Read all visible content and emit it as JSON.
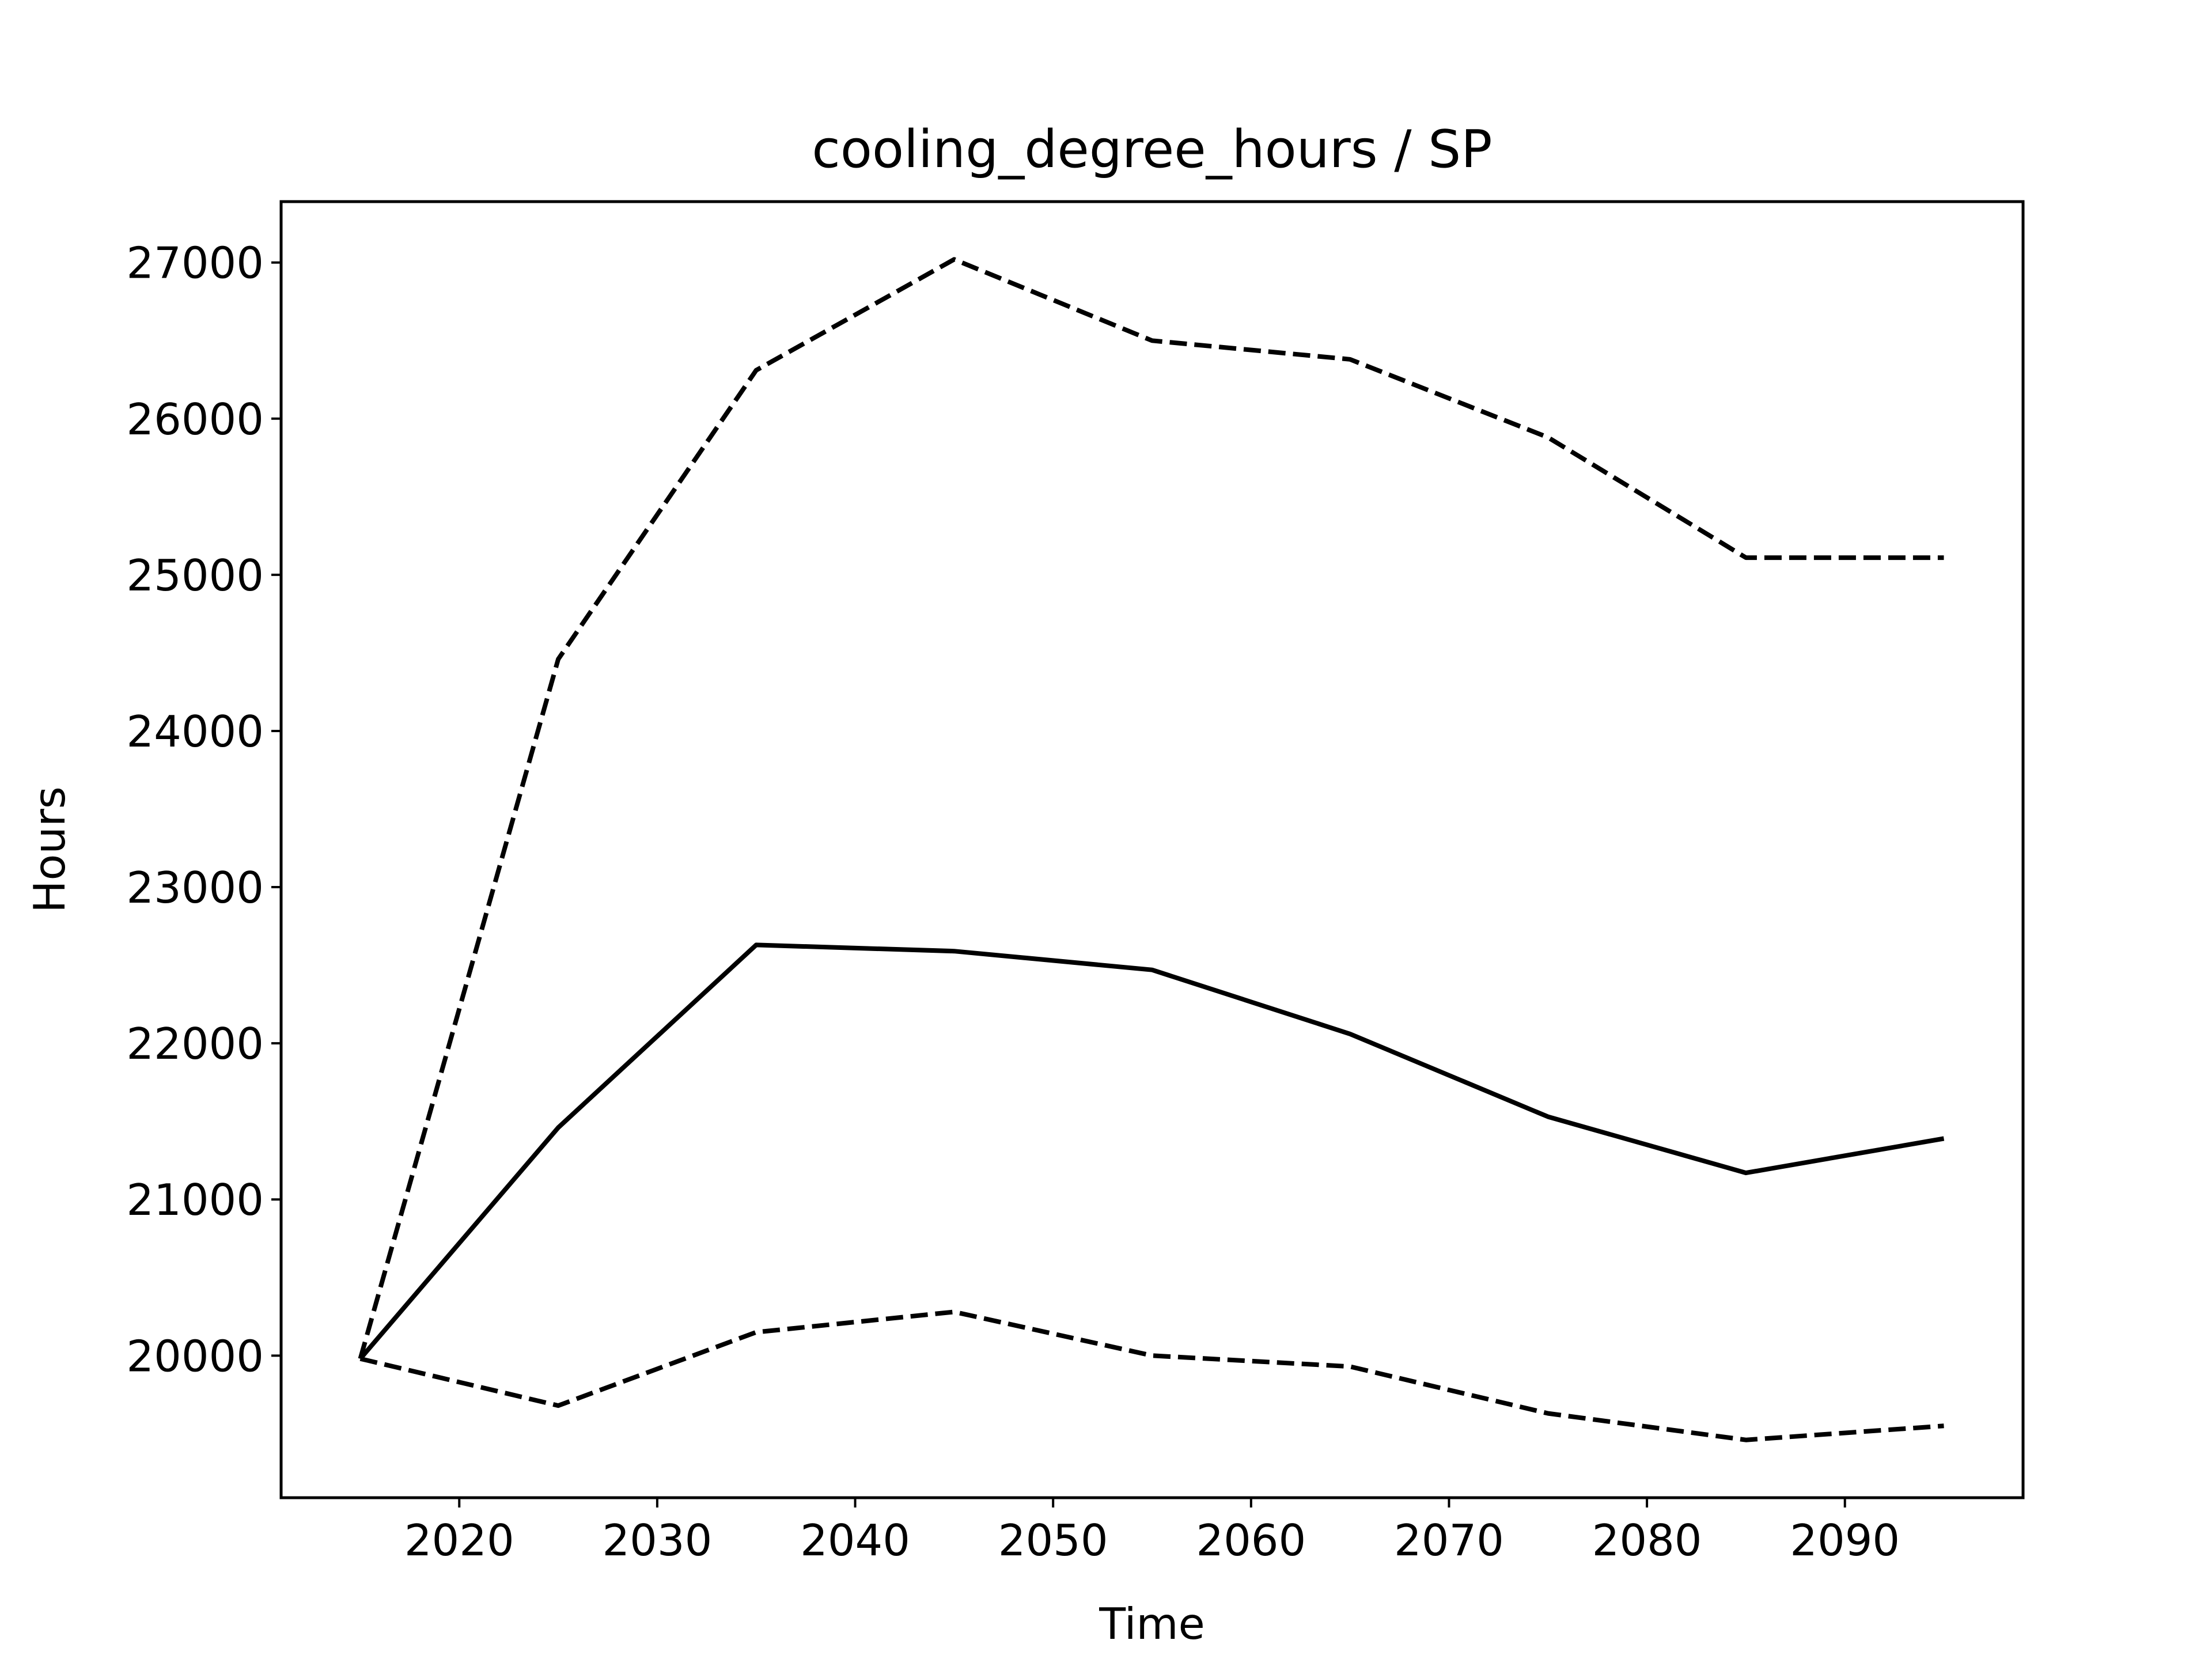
{
  "chart_data": {
    "type": "line",
    "title": "cooling_degree_hours / SP",
    "xlabel": "Time",
    "ylabel": "Hours",
    "x": [
      2015,
      2025,
      2035,
      2045,
      2055,
      2065,
      2075,
      2085,
      2095
    ],
    "series": [
      {
        "style": "solid",
        "values": [
          19980,
          21460,
          22630,
          22590,
          22470,
          22060,
          21530,
          21170,
          21390
        ]
      },
      {
        "style": "dashed",
        "values": [
          19980,
          24460,
          26310,
          27020,
          26500,
          26380,
          25880,
          25110,
          25110
        ]
      },
      {
        "style": "dashed",
        "values": [
          19980,
          19680,
          20150,
          20280,
          20000,
          19930,
          19630,
          19460,
          19550
        ]
      }
    ],
    "xlim": [
      2011,
      2099
    ],
    "ylim": [
      19090,
      27390
    ],
    "xticks": [
      2020,
      2030,
      2040,
      2050,
      2060,
      2070,
      2080,
      2090
    ],
    "yticks": [
      20000,
      21000,
      22000,
      23000,
      24000,
      25000,
      26000,
      27000
    ],
    "grid": false,
    "line_color": "#000000"
  }
}
